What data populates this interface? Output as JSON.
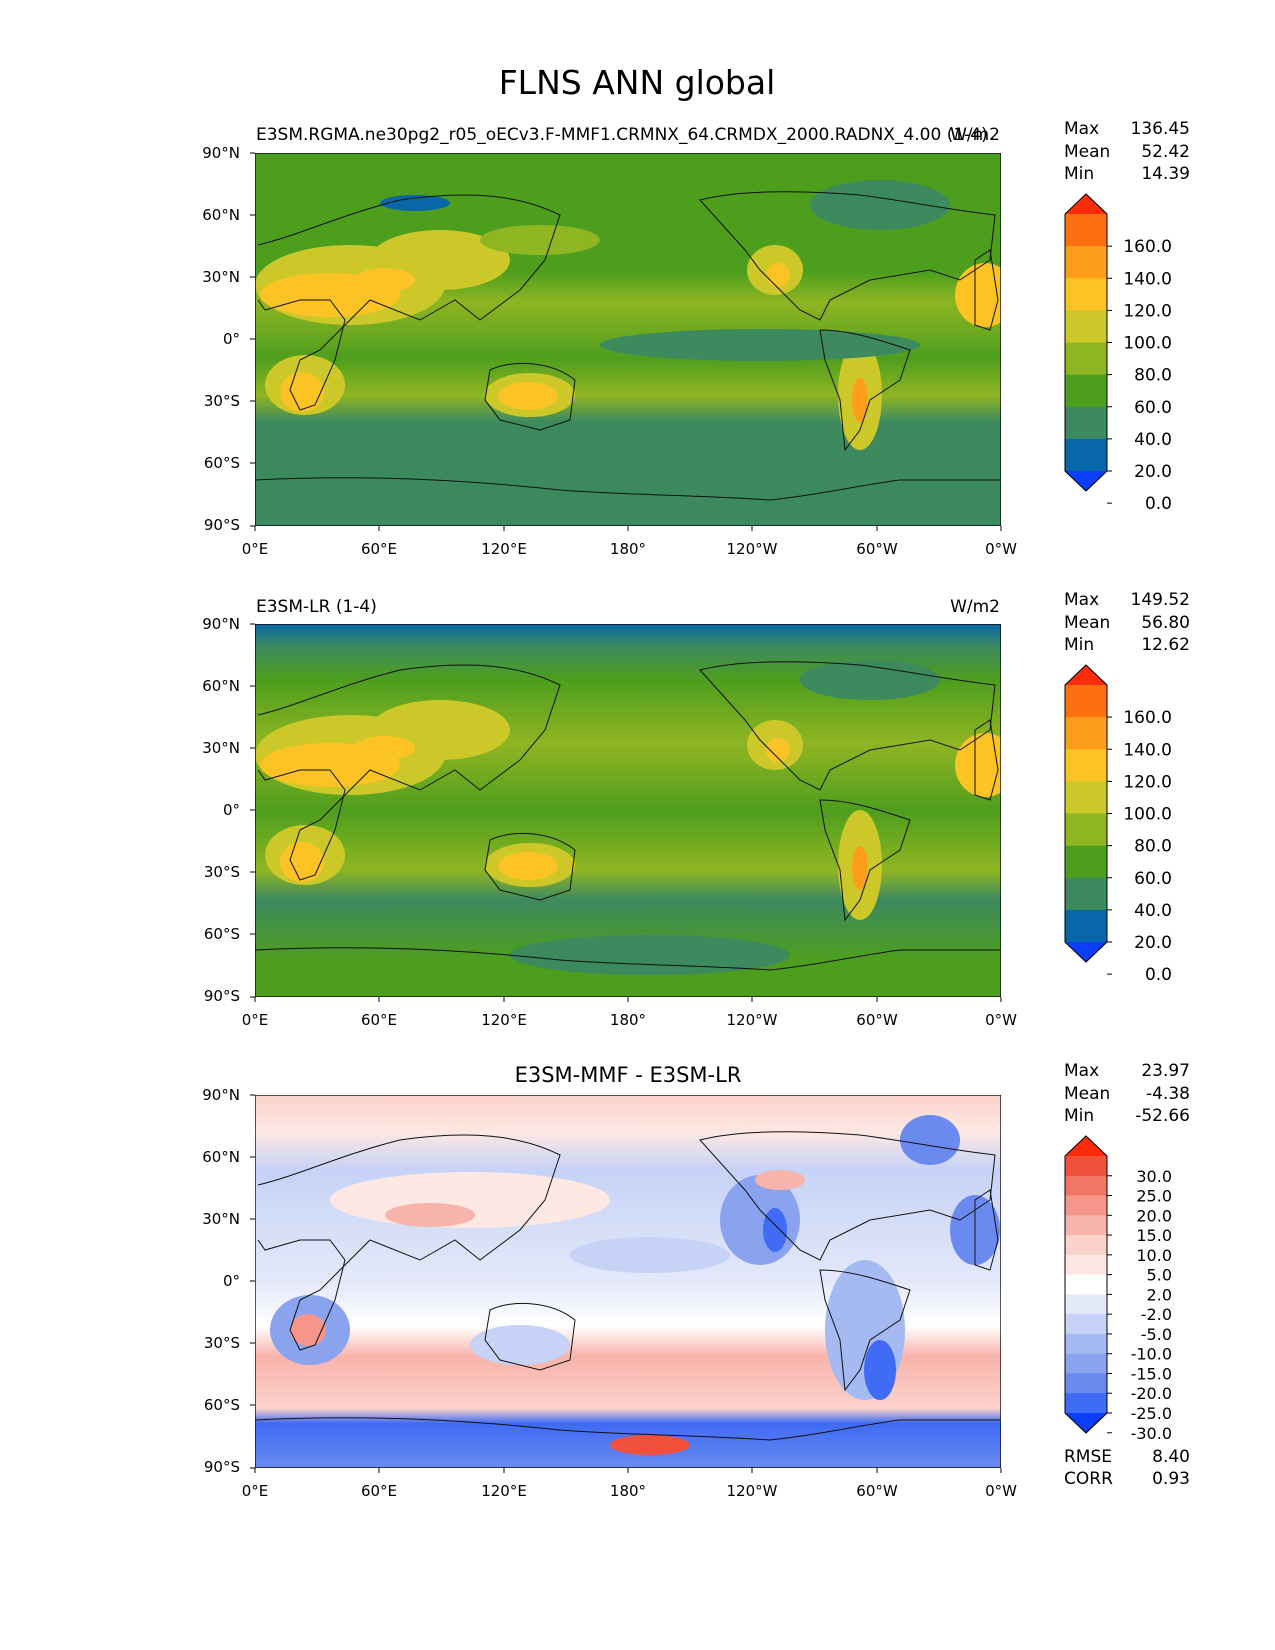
{
  "figure": {
    "title": "FLNS ANN global"
  },
  "chart_data": [
    {
      "type": "heatmap",
      "name": "test",
      "left_title": "E3SM.RGMA.ne30pg2_r05_oECv3.F-MMF1.CRMNX_64.CRMDX_2000.RADNX_4.00 (1-4)",
      "center_title": "",
      "units": "W/m2",
      "stats": [
        {
          "label": "Max",
          "value": "136.45"
        },
        {
          "label": "Mean",
          "value": "52.42"
        },
        {
          "label": "Min",
          "value": "14.39"
        }
      ],
      "xticks": [
        "0°E",
        "60°E",
        "120°E",
        "180°",
        "120°W",
        "60°W",
        "0°W"
      ],
      "yticks": [
        "90°N",
        "60°N",
        "30°N",
        "0°",
        "30°S",
        "60°S",
        "90°S"
      ],
      "colorbar": {
        "levels": [
          "160.0",
          "140.0",
          "120.0",
          "100.0",
          "80.0",
          "60.0",
          "40.0",
          "20.0",
          "0.0"
        ],
        "colors": [
          "#fb2c0c",
          "#fd7010",
          "#fc9e1c",
          "#fbc324",
          "#cdc82a",
          "#8fb522",
          "#4e9e1e",
          "#3c8a5e",
          "#0867a8",
          "#0b3ef8"
        ]
      }
    },
    {
      "type": "heatmap",
      "name": "reference",
      "left_title": "E3SM-LR (1-4)",
      "center_title": "",
      "units": "W/m2",
      "stats": [
        {
          "label": "Max",
          "value": "149.52"
        },
        {
          "label": "Mean",
          "value": "56.80"
        },
        {
          "label": "Min",
          "value": "12.62"
        }
      ],
      "xticks": [
        "0°E",
        "60°E",
        "120°E",
        "180°",
        "120°W",
        "60°W",
        "0°W"
      ],
      "yticks": [
        "90°N",
        "60°N",
        "30°N",
        "0°",
        "30°S",
        "60°S",
        "90°S"
      ],
      "colorbar": {
        "levels": [
          "160.0",
          "140.0",
          "120.0",
          "100.0",
          "80.0",
          "60.0",
          "40.0",
          "20.0",
          "0.0"
        ],
        "colors": [
          "#fb2c0c",
          "#fd7010",
          "#fc9e1c",
          "#fbc324",
          "#cdc82a",
          "#8fb522",
          "#4e9e1e",
          "#3c8a5e",
          "#0867a8",
          "#0b3ef8"
        ]
      }
    },
    {
      "type": "heatmap",
      "name": "difference",
      "left_title": "",
      "center_title": "E3SM-MMF - E3SM-LR",
      "units": "",
      "stats": [
        {
          "label": "Max",
          "value": "23.97"
        },
        {
          "label": "Mean",
          "value": "-4.38"
        },
        {
          "label": "Min",
          "value": "-52.66"
        }
      ],
      "extra_stats": [
        {
          "label": "RMSE",
          "value": "8.40"
        },
        {
          "label": "CORR",
          "value": "0.93"
        }
      ],
      "xticks": [
        "0°E",
        "60°E",
        "120°E",
        "180°",
        "120°W",
        "60°W",
        "0°W"
      ],
      "yticks": [
        "90°N",
        "60°N",
        "30°N",
        "0°",
        "30°S",
        "60°S",
        "90°S"
      ],
      "colorbar": {
        "levels": [
          "30.0",
          "25.0",
          "20.0",
          "15.0",
          "10.0",
          "5.0",
          "2.0",
          "-2.0",
          "-5.0",
          "-10.0",
          "-15.0",
          "-20.0",
          "-25.0",
          "-30.0"
        ],
        "colors": [
          "#fe2a0a",
          "#f0503c",
          "#f37665",
          "#f6958a",
          "#f8b3aa",
          "#fbd2cb",
          "#fde8e4",
          "#ffffff",
          "#e4e9fa",
          "#c6d2f6",
          "#a5b9f2",
          "#8aa3ef",
          "#6a8af0",
          "#3f6bf5",
          "#0b3ef8"
        ]
      }
    }
  ]
}
